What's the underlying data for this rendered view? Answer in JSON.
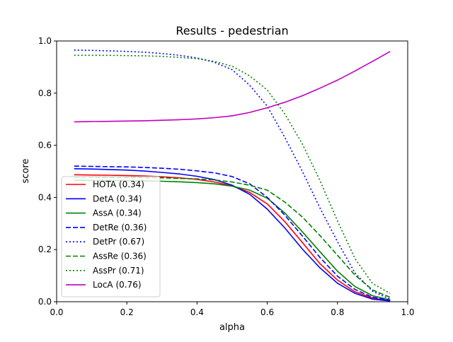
{
  "chart_data": {
    "type": "line",
    "title": "Results - pedestrian",
    "xlabel": "alpha",
    "ylabel": "score",
    "xlim": [
      0.0,
      1.0
    ],
    "ylim": [
      0.0,
      1.0
    ],
    "xticks": [
      "0.0",
      "0.2",
      "0.4",
      "0.6",
      "0.8",
      "1.0"
    ],
    "yticks": [
      "0.0",
      "0.2",
      "0.4",
      "0.6",
      "0.8",
      "1.0"
    ],
    "grid": false,
    "legend_position": "lower-left",
    "x": [
      0.05,
      0.1,
      0.15,
      0.2,
      0.25,
      0.3,
      0.35,
      0.4,
      0.45,
      0.5,
      0.55,
      0.6,
      0.65,
      0.7,
      0.75,
      0.8,
      0.85,
      0.9,
      0.95
    ],
    "series": [
      {
        "name": "HOTA (0.34)",
        "color": "#ff0000",
        "style": "solid",
        "values": [
          0.487,
          0.486,
          0.485,
          0.484,
          0.482,
          0.479,
          0.475,
          0.469,
          0.459,
          0.444,
          0.419,
          0.375,
          0.307,
          0.227,
          0.146,
          0.083,
          0.038,
          0.014,
          0.004
        ]
      },
      {
        "name": "DetA (0.34)",
        "color": "#0000ff",
        "style": "solid",
        "values": [
          0.51,
          0.509,
          0.507,
          0.505,
          0.501,
          0.496,
          0.49,
          0.481,
          0.468,
          0.447,
          0.412,
          0.355,
          0.283,
          0.202,
          0.13,
          0.071,
          0.032,
          0.01,
          0.003
        ]
      },
      {
        "name": "AssA (0.34)",
        "color": "#008000",
        "style": "solid",
        "values": [
          0.466,
          0.465,
          0.465,
          0.464,
          0.463,
          0.462,
          0.46,
          0.457,
          0.452,
          0.443,
          0.428,
          0.397,
          0.34,
          0.268,
          0.192,
          0.117,
          0.058,
          0.023,
          0.007
        ]
      },
      {
        "name": "DetRe (0.36)",
        "color": "#0000ff",
        "style": "dashed",
        "values": [
          0.52,
          0.519,
          0.518,
          0.517,
          0.515,
          0.512,
          0.508,
          0.502,
          0.494,
          0.48,
          0.452,
          0.4,
          0.332,
          0.252,
          0.17,
          0.098,
          0.047,
          0.017,
          0.005
        ]
      },
      {
        "name": "DetPr (0.67)",
        "color": "#0000ff",
        "style": "dotted",
        "values": [
          0.965,
          0.964,
          0.962,
          0.96,
          0.957,
          0.952,
          0.945,
          0.935,
          0.918,
          0.89,
          0.83,
          0.75,
          0.63,
          0.5,
          0.36,
          0.23,
          0.11,
          0.04,
          0.01
        ]
      },
      {
        "name": "AssRe (0.36)",
        "color": "#008000",
        "style": "dashed",
        "values": [
          0.478,
          0.478,
          0.477,
          0.477,
          0.476,
          0.475,
          0.473,
          0.471,
          0.467,
          0.459,
          0.447,
          0.428,
          0.382,
          0.325,
          0.254,
          0.178,
          0.102,
          0.045,
          0.017
        ]
      },
      {
        "name": "AssPr (0.71)",
        "color": "#008000",
        "style": "dotted",
        "values": [
          0.945,
          0.945,
          0.945,
          0.944,
          0.943,
          0.941,
          0.937,
          0.932,
          0.922,
          0.903,
          0.866,
          0.812,
          0.72,
          0.605,
          0.465,
          0.31,
          0.165,
          0.07,
          0.032
        ]
      },
      {
        "name": "LocA (0.76)",
        "color": "#bf00bf",
        "style": "solid",
        "values": [
          0.69,
          0.691,
          0.692,
          0.693,
          0.694,
          0.696,
          0.698,
          0.701,
          0.706,
          0.713,
          0.726,
          0.744,
          0.765,
          0.79,
          0.819,
          0.85,
          0.885,
          0.922,
          0.96
        ]
      }
    ]
  }
}
